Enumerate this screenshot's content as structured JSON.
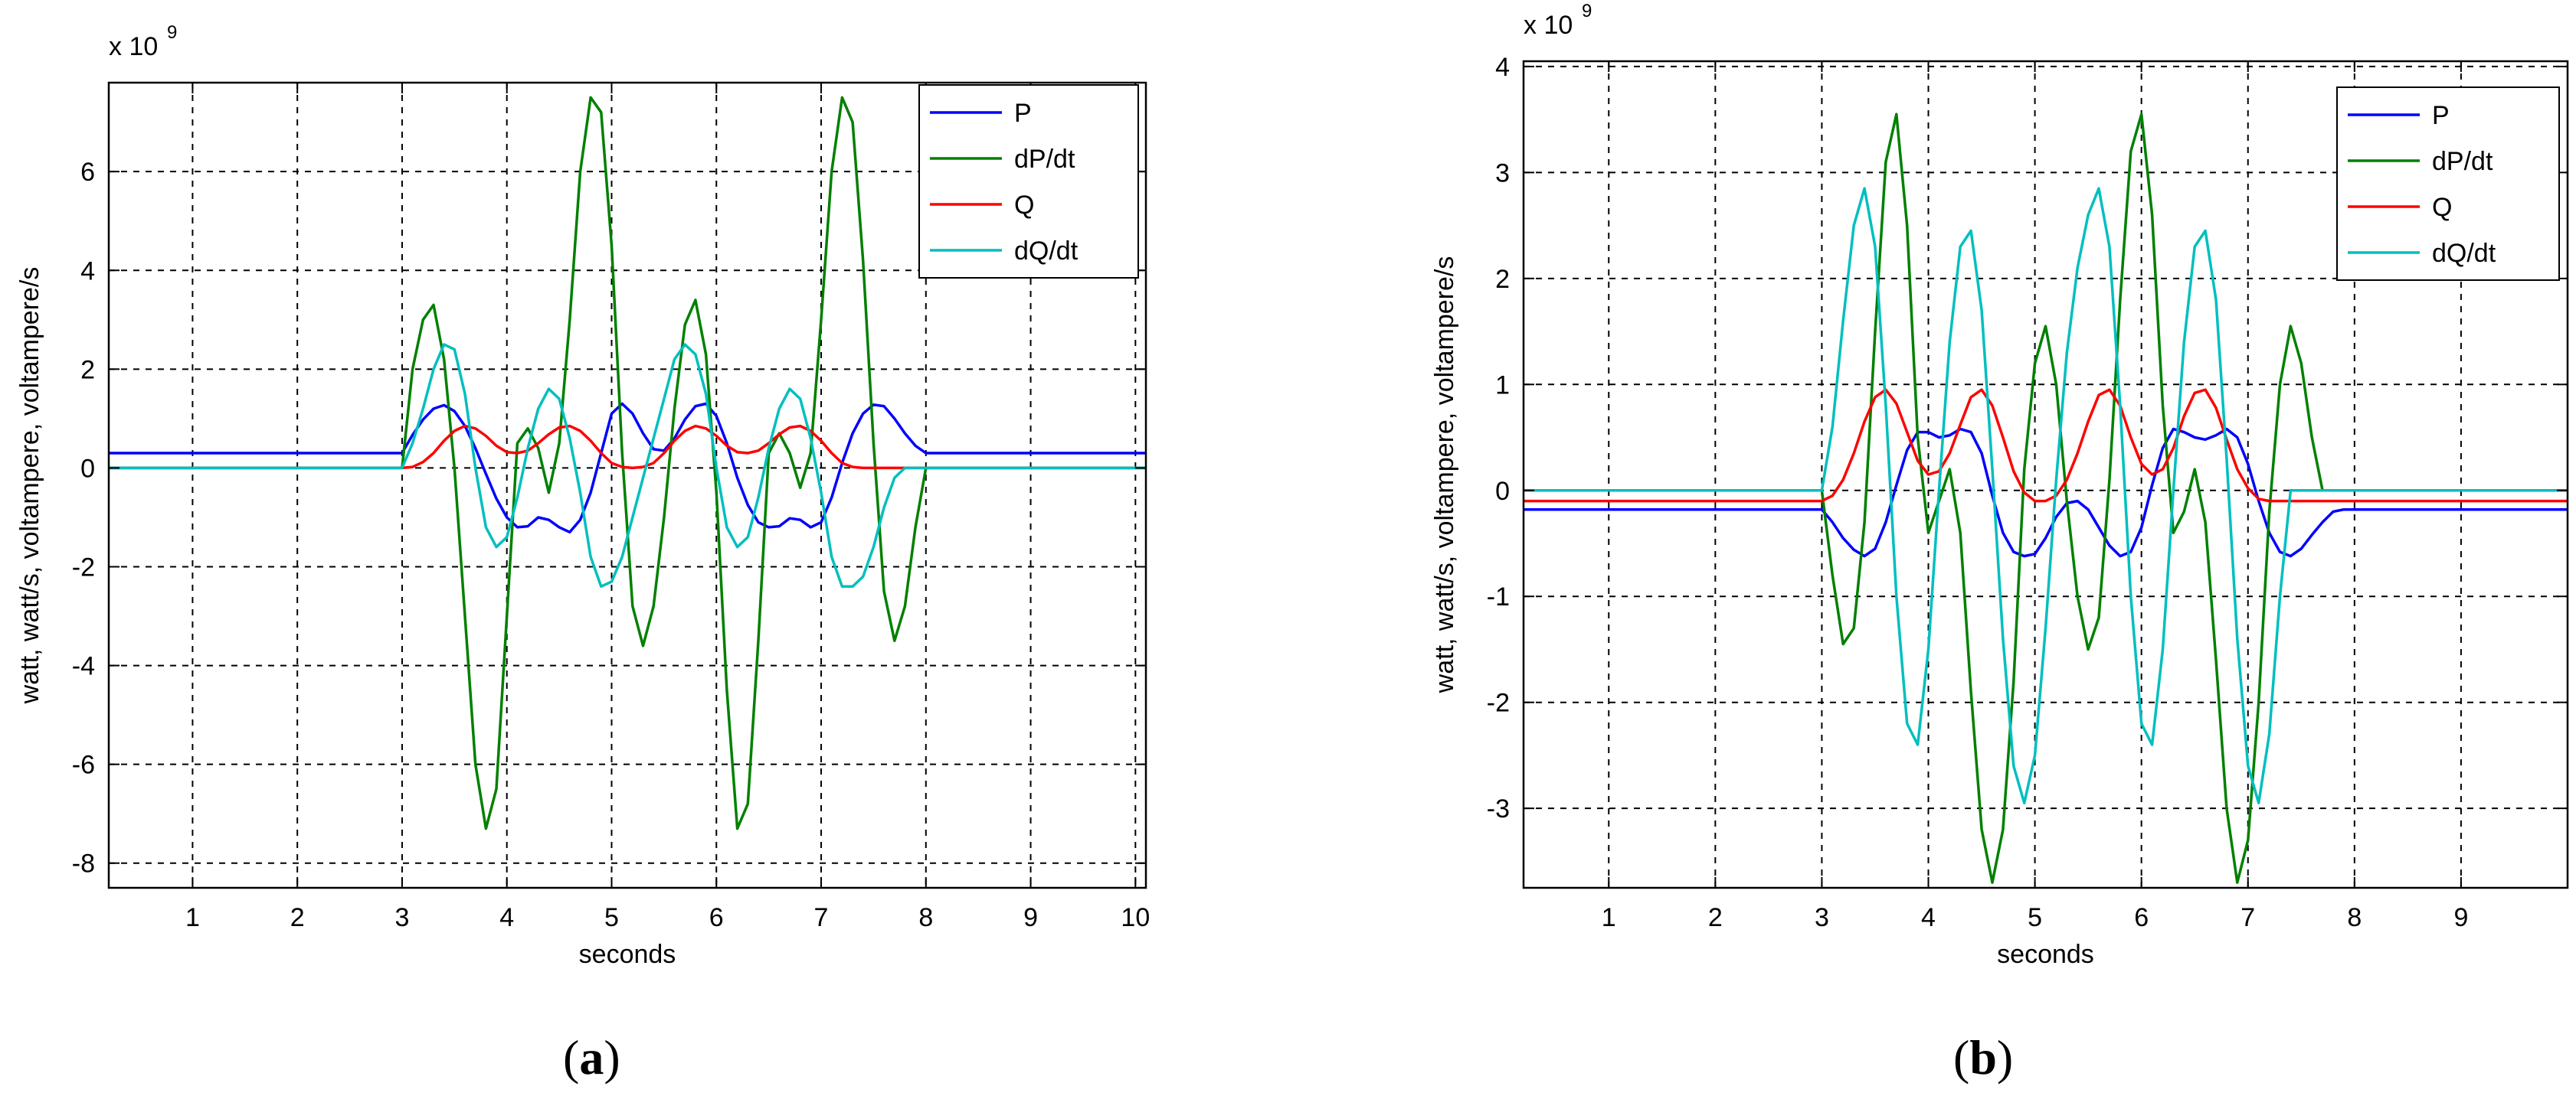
{
  "chart_data": [
    {
      "id": "a",
      "type": "line",
      "panel_label": "a",
      "multiplier": "x 10",
      "multiplier_exponent": "9",
      "xlabel": "seconds",
      "ylabel": "watt, watt/s, voltampere, voltampere/s",
      "xlim": [
        0.2,
        10.1
      ],
      "ylim": [
        -8.5,
        7.8
      ],
      "xticks": [
        1,
        2,
        3,
        4,
        5,
        6,
        7,
        8,
        9,
        10
      ],
      "yticks": [
        -8,
        -6,
        -4,
        -2,
        0,
        2,
        4,
        6
      ],
      "grid": true,
      "legend_position": "top-right",
      "series": [
        {
          "name": "P",
          "color": "#0000ff",
          "x": [
            0.2,
            3.0,
            3.1,
            3.2,
            3.3,
            3.4,
            3.5,
            3.6,
            3.7,
            3.8,
            3.9,
            4.0,
            4.1,
            4.2,
            4.3,
            4.4,
            4.5,
            4.6,
            4.7,
            4.8,
            4.9,
            5.0,
            5.1,
            5.2,
            5.3,
            5.4,
            5.5,
            5.6,
            5.7,
            5.8,
            5.9,
            6.0,
            6.1,
            6.2,
            6.3,
            6.4,
            6.5,
            6.6,
            6.7,
            6.8,
            6.9,
            7.0,
            7.1,
            7.2,
            7.3,
            7.4,
            7.5,
            7.6,
            7.7,
            7.8,
            7.9,
            8.0,
            10.1
          ],
          "y": [
            0.3,
            0.3,
            0.67,
            0.98,
            1.2,
            1.27,
            1.15,
            0.85,
            0.4,
            -0.12,
            -0.62,
            -1.0,
            -1.2,
            -1.18,
            -1.0,
            -1.05,
            -1.2,
            -1.3,
            -1.05,
            -0.5,
            0.3,
            1.1,
            1.3,
            1.1,
            0.7,
            0.38,
            0.35,
            0.6,
            0.98,
            1.25,
            1.3,
            1.05,
            0.5,
            -0.2,
            -0.75,
            -1.1,
            -1.2,
            -1.18,
            -1.02,
            -1.05,
            -1.2,
            -1.1,
            -0.6,
            0.1,
            0.7,
            1.1,
            1.28,
            1.25,
            1.0,
            0.7,
            0.45,
            0.3,
            0.3
          ]
        },
        {
          "name": "dP/dt",
          "color": "#008000",
          "x": [
            0.2,
            3.0,
            3.1,
            3.2,
            3.3,
            3.4,
            3.5,
            3.6,
            3.7,
            3.8,
            3.9,
            4.0,
            4.1,
            4.2,
            4.3,
            4.4,
            4.5,
            4.6,
            4.7,
            4.8,
            4.9,
            5.0,
            5.1,
            5.2,
            5.3,
            5.4,
            5.5,
            5.6,
            5.7,
            5.8,
            5.9,
            6.0,
            6.1,
            6.2,
            6.3,
            6.4,
            6.5,
            6.6,
            6.7,
            6.8,
            6.9,
            7.0,
            7.1,
            7.2,
            7.3,
            7.4,
            7.5,
            7.6,
            7.7,
            7.8,
            7.9,
            8.0,
            10.1
          ],
          "y": [
            0,
            0,
            2.0,
            3.0,
            3.3,
            2.2,
            0,
            -3.0,
            -6.0,
            -7.3,
            -6.5,
            -3.0,
            0.5,
            0.8,
            0.4,
            -0.5,
            0.5,
            3.0,
            6.0,
            7.5,
            7.2,
            4.5,
            0.3,
            -2.8,
            -3.6,
            -2.8,
            -1.0,
            1.2,
            2.9,
            3.4,
            2.3,
            -0.5,
            -4.5,
            -7.3,
            -6.8,
            -3.5,
            0.3,
            0.7,
            0.3,
            -0.4,
            0.3,
            3.0,
            6.0,
            7.5,
            7.0,
            4.2,
            0.5,
            -2.5,
            -3.5,
            -2.8,
            -1.2,
            0,
            0
          ]
        },
        {
          "name": "Q",
          "color": "#ff0000",
          "x": [
            0.2,
            3.0,
            3.1,
            3.2,
            3.3,
            3.4,
            3.5,
            3.6,
            3.7,
            3.8,
            3.9,
            4.0,
            4.1,
            4.2,
            4.3,
            4.4,
            4.5,
            4.6,
            4.7,
            4.8,
            4.9,
            5.0,
            5.1,
            5.2,
            5.3,
            5.4,
            5.5,
            5.6,
            5.7,
            5.8,
            5.9,
            6.0,
            6.1,
            6.2,
            6.3,
            6.4,
            6.5,
            6.6,
            6.7,
            6.8,
            6.9,
            7.0,
            7.1,
            7.2,
            7.3,
            7.4,
            7.5,
            7.6,
            7.7,
            7.8,
            7.9,
            8.0,
            10.1
          ],
          "y": [
            0,
            0,
            0.02,
            0.12,
            0.3,
            0.55,
            0.75,
            0.85,
            0.8,
            0.65,
            0.45,
            0.32,
            0.3,
            0.35,
            0.5,
            0.68,
            0.82,
            0.85,
            0.75,
            0.55,
            0.3,
            0.1,
            0.02,
            0,
            0.02,
            0.1,
            0.3,
            0.55,
            0.75,
            0.85,
            0.8,
            0.65,
            0.45,
            0.32,
            0.3,
            0.35,
            0.5,
            0.68,
            0.82,
            0.85,
            0.75,
            0.55,
            0.3,
            0.1,
            0.02,
            0,
            0,
            0,
            0,
            0,
            0,
            0,
            0
          ]
        },
        {
          "name": "dQ/dt",
          "color": "#00bfbf",
          "x": [
            0.2,
            3.0,
            3.1,
            3.2,
            3.3,
            3.4,
            3.5,
            3.6,
            3.7,
            3.8,
            3.9,
            4.0,
            4.1,
            4.2,
            4.3,
            4.4,
            4.5,
            4.6,
            4.7,
            4.8,
            4.9,
            5.0,
            5.1,
            5.2,
            5.3,
            5.4,
            5.5,
            5.6,
            5.7,
            5.8,
            5.9,
            6.0,
            6.1,
            6.2,
            6.3,
            6.4,
            6.5,
            6.6,
            6.7,
            6.8,
            6.9,
            7.0,
            7.1,
            7.2,
            7.3,
            7.4,
            7.5,
            7.6,
            7.7,
            7.8,
            7.9,
            8.0,
            10.1
          ],
          "y": [
            0,
            0,
            0.5,
            1.2,
            2.0,
            2.5,
            2.4,
            1.5,
            0,
            -1.2,
            -1.6,
            -1.4,
            -0.6,
            0.4,
            1.2,
            1.6,
            1.4,
            0.6,
            -0.5,
            -1.8,
            -2.4,
            -2.3,
            -1.8,
            -1.0,
            -0.2,
            0.6,
            1.4,
            2.2,
            2.5,
            2.3,
            1.5,
            0,
            -1.2,
            -1.6,
            -1.4,
            -0.6,
            0.4,
            1.2,
            1.6,
            1.4,
            0.6,
            -0.5,
            -1.8,
            -2.4,
            -2.4,
            -2.2,
            -1.6,
            -0.8,
            -0.2,
            0,
            0,
            0,
            0
          ]
        }
      ]
    },
    {
      "id": "b",
      "type": "line",
      "panel_label": "b",
      "multiplier": "x 10",
      "multiplier_exponent": "9",
      "xlabel": "seconds",
      "ylabel": "watt, watt/s, voltampere, voltampere/s",
      "xlim": [
        0.2,
        10.0
      ],
      "ylim": [
        -3.75,
        4.05
      ],
      "xticks": [
        1,
        2,
        3,
        4,
        5,
        6,
        7,
        8,
        9
      ],
      "yticks": [
        -3,
        -2,
        -1,
        0,
        1,
        2,
        3,
        4
      ],
      "grid": true,
      "legend_position": "top-right",
      "series": [
        {
          "name": "P",
          "color": "#0000ff",
          "x": [
            0.2,
            3.0,
            3.1,
            3.2,
            3.3,
            3.4,
            3.5,
            3.6,
            3.7,
            3.8,
            3.9,
            4.0,
            4.1,
            4.2,
            4.3,
            4.4,
            4.5,
            4.6,
            4.7,
            4.8,
            4.9,
            5.0,
            5.1,
            5.2,
            5.3,
            5.4,
            5.5,
            5.6,
            5.7,
            5.8,
            5.9,
            6.0,
            6.1,
            6.2,
            6.3,
            6.4,
            6.5,
            6.6,
            6.7,
            6.8,
            6.9,
            7.0,
            7.1,
            7.2,
            7.3,
            7.4,
            7.5,
            7.6,
            7.7,
            7.8,
            7.9,
            8.0,
            10.0
          ],
          "y": [
            -0.18,
            -0.18,
            -0.3,
            -0.45,
            -0.56,
            -0.62,
            -0.55,
            -0.3,
            0.05,
            0.38,
            0.55,
            0.55,
            0.5,
            0.52,
            0.58,
            0.55,
            0.35,
            -0.05,
            -0.4,
            -0.58,
            -0.62,
            -0.6,
            -0.45,
            -0.25,
            -0.12,
            -0.1,
            -0.18,
            -0.35,
            -0.52,
            -0.62,
            -0.58,
            -0.35,
            0.05,
            0.4,
            0.58,
            0.55,
            0.5,
            0.48,
            0.52,
            0.58,
            0.5,
            0.25,
            -0.1,
            -0.4,
            -0.58,
            -0.62,
            -0.55,
            -0.42,
            -0.3,
            -0.2,
            -0.18,
            -0.18,
            -0.18
          ]
        },
        {
          "name": "dP/dt",
          "color": "#008000",
          "x": [
            0.2,
            3.0,
            3.1,
            3.2,
            3.3,
            3.4,
            3.5,
            3.6,
            3.7,
            3.8,
            3.9,
            4.0,
            4.1,
            4.2,
            4.3,
            4.4,
            4.5,
            4.6,
            4.7,
            4.8,
            4.9,
            5.0,
            5.1,
            5.2,
            5.3,
            5.4,
            5.5,
            5.6,
            5.7,
            5.8,
            5.9,
            6.0,
            6.1,
            6.2,
            6.3,
            6.4,
            6.5,
            6.6,
            6.7,
            6.8,
            6.9,
            7.0,
            7.1,
            7.2,
            7.3,
            7.4,
            7.5,
            7.6,
            7.7,
            7.8,
            7.9,
            8.0,
            10.0
          ],
          "y": [
            0,
            0,
            -0.8,
            -1.45,
            -1.3,
            -0.3,
            1.5,
            3.1,
            3.55,
            2.5,
            0.5,
            -0.4,
            -0.1,
            0.2,
            -0.4,
            -1.9,
            -3.2,
            -3.7,
            -3.2,
            -1.8,
            0.2,
            1.2,
            1.55,
            1.0,
            -0.1,
            -1.0,
            -1.5,
            -1.2,
            0.1,
            1.8,
            3.2,
            3.55,
            2.6,
            0.8,
            -0.4,
            -0.2,
            0.2,
            -0.3,
            -1.6,
            -3.0,
            -3.7,
            -3.3,
            -2.0,
            -0.2,
            1.0,
            1.55,
            1.2,
            0.5,
            0,
            0,
            0,
            0,
            0
          ]
        },
        {
          "name": "Q",
          "color": "#ff0000",
          "x": [
            0.2,
            3.0,
            3.1,
            3.2,
            3.3,
            3.4,
            3.5,
            3.6,
            3.7,
            3.8,
            3.9,
            4.0,
            4.1,
            4.2,
            4.3,
            4.4,
            4.5,
            4.6,
            4.7,
            4.8,
            4.9,
            5.0,
            5.1,
            5.2,
            5.3,
            5.4,
            5.5,
            5.6,
            5.7,
            5.8,
            5.9,
            6.0,
            6.1,
            6.2,
            6.3,
            6.4,
            6.5,
            6.6,
            6.7,
            6.8,
            6.9,
            7.0,
            7.1,
            7.2,
            7.3,
            7.4,
            7.5,
            7.6,
            7.7,
            7.8,
            7.9,
            8.0,
            10.0
          ],
          "y": [
            -0.1,
            -0.1,
            -0.05,
            0.1,
            0.35,
            0.65,
            0.88,
            0.95,
            0.82,
            0.55,
            0.28,
            0.15,
            0.18,
            0.35,
            0.62,
            0.88,
            0.95,
            0.8,
            0.5,
            0.18,
            -0.02,
            -0.1,
            -0.1,
            -0.05,
            0.1,
            0.35,
            0.65,
            0.9,
            0.95,
            0.8,
            0.5,
            0.25,
            0.15,
            0.2,
            0.4,
            0.7,
            0.92,
            0.95,
            0.78,
            0.48,
            0.2,
            0.02,
            -0.08,
            -0.1,
            -0.1,
            -0.1,
            -0.1,
            -0.1,
            -0.1,
            -0.1,
            -0.1,
            -0.1,
            -0.1
          ]
        },
        {
          "name": "dQ/dt",
          "color": "#00bfbf",
          "x": [
            0.2,
            3.0,
            3.1,
            3.2,
            3.3,
            3.4,
            3.5,
            3.6,
            3.7,
            3.8,
            3.9,
            4.0,
            4.1,
            4.2,
            4.3,
            4.4,
            4.5,
            4.6,
            4.7,
            4.8,
            4.9,
            5.0,
            5.1,
            5.2,
            5.3,
            5.4,
            5.5,
            5.6,
            5.7,
            5.8,
            5.9,
            6.0,
            6.1,
            6.2,
            6.3,
            6.4,
            6.5,
            6.6,
            6.7,
            6.8,
            6.9,
            7.0,
            7.1,
            7.2,
            7.3,
            7.4,
            7.5,
            7.6,
            7.7,
            7.8,
            7.9,
            8.0,
            10.0
          ],
          "y": [
            0,
            0,
            0.6,
            1.6,
            2.5,
            2.85,
            2.3,
            0.8,
            -1.0,
            -2.2,
            -2.4,
            -1.5,
            0,
            1.4,
            2.3,
            2.45,
            1.7,
            0.2,
            -1.4,
            -2.6,
            -2.95,
            -2.5,
            -1.3,
            0.1,
            1.3,
            2.1,
            2.6,
            2.85,
            2.3,
            0.8,
            -1.0,
            -2.2,
            -2.4,
            -1.5,
            0,
            1.4,
            2.3,
            2.45,
            1.8,
            0.3,
            -1.4,
            -2.6,
            -2.95,
            -2.3,
            -1.0,
            0,
            0,
            0,
            0,
            0,
            0,
            0,
            0
          ]
        }
      ]
    }
  ]
}
